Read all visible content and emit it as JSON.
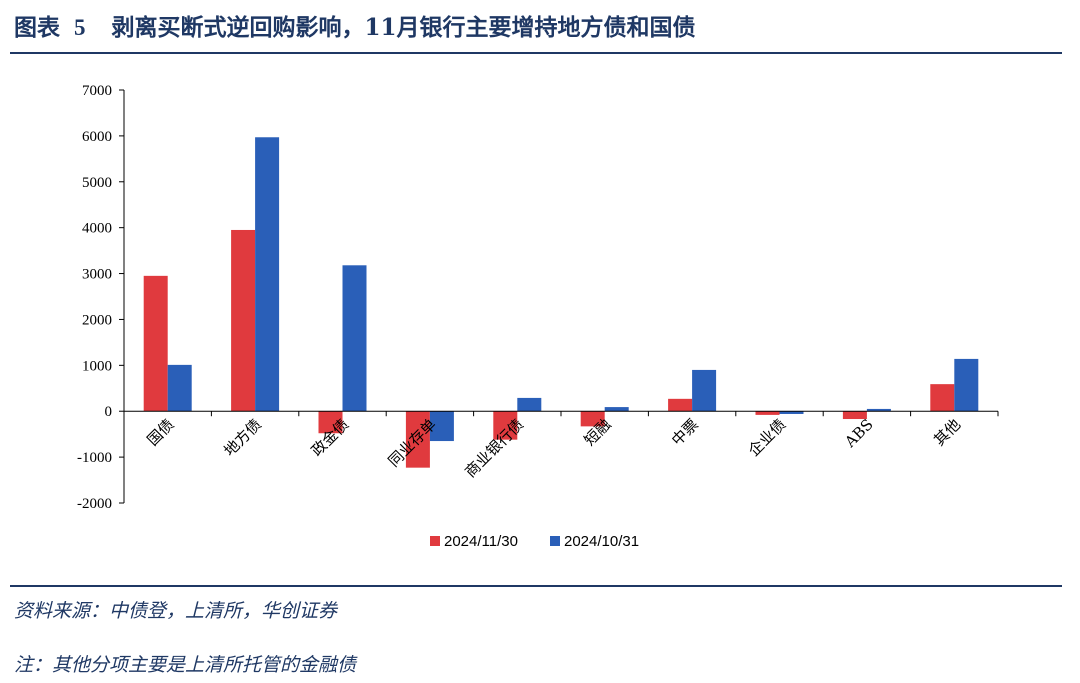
{
  "header": {
    "figure_label": "图表",
    "figure_number": "5",
    "title": "剥离买断式逆回购影响，11月银行主要增持地方债和国债"
  },
  "footer": {
    "source": "资料来源：中债登，上清所，华创证券",
    "note": "注：其他分项主要是上清所托管的金融债"
  },
  "chart_data": {
    "type": "bar",
    "title": "",
    "xlabel": "",
    "ylabel": "",
    "ylim": [
      -2000,
      7000
    ],
    "yticks": [
      -2000,
      -1000,
      0,
      1000,
      2000,
      3000,
      4000,
      5000,
      6000,
      7000
    ],
    "categories": [
      "国债",
      "地方债",
      "政金债",
      "同业存单",
      "商业银行债",
      "短融",
      "中票",
      "企业债",
      "ABS",
      "其他"
    ],
    "series": [
      {
        "name": "2024/11/30",
        "color": "#e03a3e",
        "values": [
          2950,
          3950,
          -480,
          -1230,
          -620,
          -330,
          270,
          -80,
          -170,
          590
        ]
      },
      {
        "name": "2024/10/31",
        "color": "#2a5fb8",
        "values": [
          1010,
          5970,
          3180,
          -650,
          290,
          90,
          900,
          -60,
          50,
          1140
        ]
      }
    ],
    "grid": false,
    "legend": "bottom-center"
  }
}
